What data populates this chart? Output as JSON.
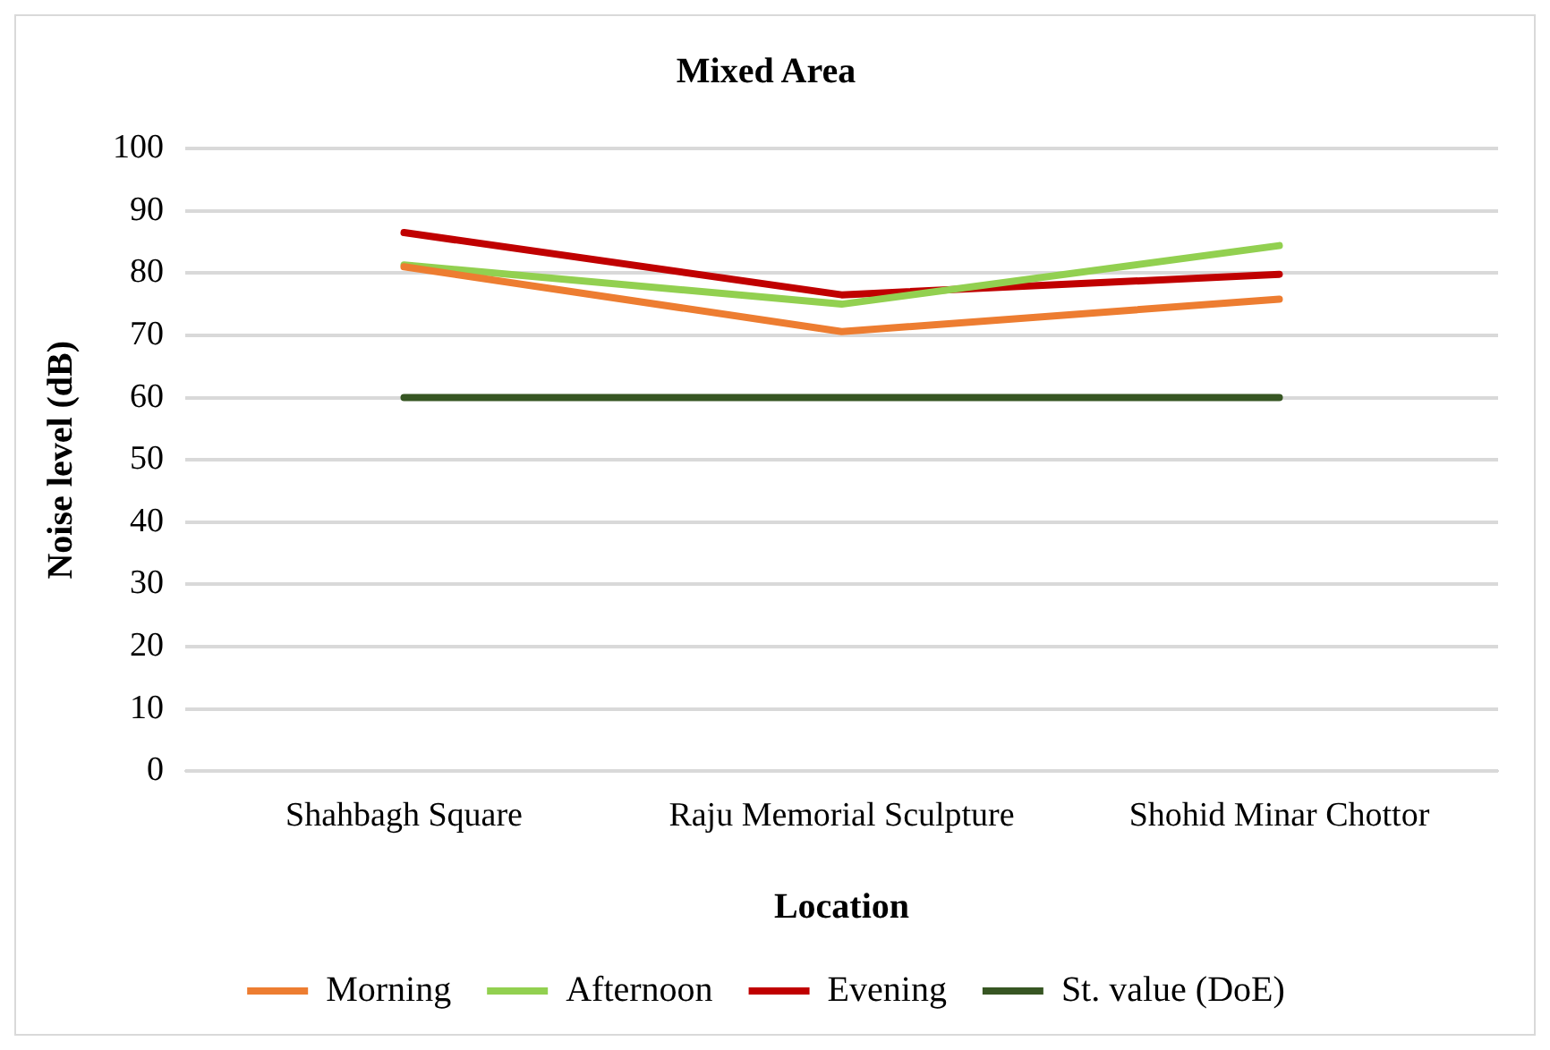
{
  "chart_data": {
    "type": "line",
    "title": "Mixed Area",
    "xlabel": "Location",
    "ylabel": "Noise level (dB)",
    "categories": [
      "Shahbagh Square",
      "Raju Memorial Sculpture",
      "Shohid Minar Chottor"
    ],
    "series": [
      {
        "name": "Morning",
        "color": "#ed7d31",
        "values": [
          81,
          70.6,
          75.8
        ]
      },
      {
        "name": "Afternoon",
        "color": "#92d050",
        "values": [
          81.3,
          75,
          84.4
        ]
      },
      {
        "name": "Evening",
        "color": "#c00000",
        "values": [
          86.5,
          76.5,
          79.8
        ]
      },
      {
        "name": "St. value (DoE)",
        "color": "#375623",
        "values": [
          60,
          60,
          60
        ]
      }
    ],
    "ylim": [
      0,
      100
    ],
    "yticks": [
      0,
      10,
      20,
      30,
      40,
      50,
      60,
      70,
      80,
      90,
      100
    ],
    "grid": "y",
    "legend": "bottom",
    "marker": "none",
    "line_style": "solid"
  }
}
